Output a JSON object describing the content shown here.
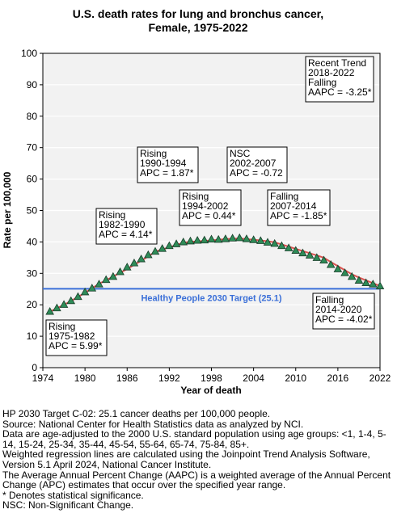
{
  "chart_data": {
    "type": "scatter",
    "title_lines": [
      "U.S. death rates for lung and bronchus cancer,",
      "Female,  1975-2022"
    ],
    "xlabel": "Year of death",
    "ylabel": "Rate per 100,000",
    "xlim": [
      1974,
      2022
    ],
    "ylim": [
      0,
      100
    ],
    "x_ticks": [
      1974,
      1980,
      1986,
      1992,
      1998,
      2004,
      2010,
      2016,
      2022
    ],
    "y_ticks": [
      0,
      10,
      20,
      30,
      40,
      50,
      60,
      70,
      80,
      90,
      100
    ],
    "grid": "horizontal",
    "x": [
      1975,
      1976,
      1977,
      1978,
      1979,
      1980,
      1981,
      1982,
      1983,
      1984,
      1985,
      1986,
      1987,
      1988,
      1989,
      1990,
      1991,
      1992,
      1993,
      1994,
      1995,
      1996,
      1997,
      1998,
      1999,
      2000,
      2001,
      2002,
      2003,
      2004,
      2005,
      2006,
      2007,
      2008,
      2009,
      2010,
      2011,
      2012,
      2013,
      2014,
      2015,
      2016,
      2017,
      2018,
      2019,
      2020,
      2021,
      2022
    ],
    "observed": [
      17.9,
      19.0,
      20.1,
      21.3,
      22.6,
      24.1,
      25.3,
      26.6,
      28.0,
      29.0,
      30.5,
      32.0,
      33.3,
      34.6,
      35.9,
      37.0,
      37.9,
      38.8,
      39.4,
      40.0,
      40.3,
      40.5,
      40.6,
      40.9,
      40.8,
      41.0,
      41.2,
      41.3,
      41.0,
      40.7,
      40.4,
      39.9,
      39.5,
      38.8,
      38.1,
      37.3,
      36.5,
      35.8,
      35.0,
      34.2,
      32.8,
      31.4,
      30.2,
      29.0,
      27.8,
      27.0,
      26.6,
      26.0
    ],
    "fitted": [
      17.8,
      18.9,
      20.0,
      21.2,
      22.5,
      23.8,
      25.2,
      26.7,
      27.8,
      29.0,
      30.2,
      31.4,
      32.7,
      34.0,
      35.4,
      36.9,
      37.6,
      38.3,
      39.0,
      39.8,
      40.0,
      40.2,
      40.3,
      40.5,
      40.7,
      40.9,
      41.0,
      41.1,
      40.9,
      40.7,
      40.5,
      40.2,
      39.9,
      39.2,
      38.5,
      37.8,
      37.1,
      36.4,
      35.7,
      35.0,
      33.6,
      32.3,
      31.0,
      29.7,
      28.7,
      27.8,
      26.9,
      26.0
    ],
    "segments": [
      {
        "start": 1975,
        "end": 1982
      },
      {
        "start": 1982,
        "end": 1990
      },
      {
        "start": 1990,
        "end": 1994
      },
      {
        "start": 1994,
        "end": 2002
      },
      {
        "start": 2002,
        "end": 2007
      },
      {
        "start": 2007,
        "end": 2014
      },
      {
        "start": 2014,
        "end": 2020
      },
      {
        "start": 2020,
        "end": 2022
      }
    ],
    "target": {
      "value": 25.1,
      "label": "Healthy People 2030 Target (25.1)",
      "color": "#3a6fd8"
    },
    "annotations": [
      {
        "lines": [
          "Rising",
          "1975-1982",
          "APC =  5.99*"
        ]
      },
      {
        "lines": [
          "Rising",
          "1982-1990",
          "APC =  4.14*"
        ]
      },
      {
        "lines": [
          "Rising",
          "1990-1994",
          "APC =  1.87*"
        ]
      },
      {
        "lines": [
          "Rising",
          "1994-2002",
          "APC =  0.44*"
        ]
      },
      {
        "lines": [
          "NSC",
          "2002-2007",
          "APC = -0.72"
        ]
      },
      {
        "lines": [
          "Falling",
          "2007-2014",
          "APC = -1.85*"
        ]
      },
      {
        "lines": [
          "Falling",
          "2014-2020",
          "APC = -4.02*"
        ]
      },
      {
        "lines": [
          "Recent Trend",
          "2018-2022",
          "Falling",
          "AAPC = -3.25*"
        ]
      }
    ],
    "colors": {
      "marker_fill": "#2e8b57",
      "marker_stroke": "#1a3d2a",
      "trend_line": "#d9534f",
      "plot_bg": "#f2f2f2",
      "grid": "#ffffff"
    }
  },
  "footnotes": [
    "HP 2030 Target C-02: 25.1 cancer deaths per 100,000 people.",
    "Source: National Center for Health Statistics data as analyzed by NCI.",
    "Data are age-adjusted to the 2000 U.S. standard population using age groups: <1, 1-4, 5-14, 15-24, 25-34, 35-44, 45-54, 55-64, 65-74, 75-84, 85+.",
    "Weighted regression lines are calculated using the Joinpoint Trend Analysis Software, Version 5.1 April 2024, National Cancer Institute.",
    "The Average Annual Percent Change (AAPC) is a weighted average of the Annual Percent Change (APC) estimates that occur over the specified year range.",
    "* Denotes statistical significance.",
    "NSC: Non-Significant Change."
  ]
}
